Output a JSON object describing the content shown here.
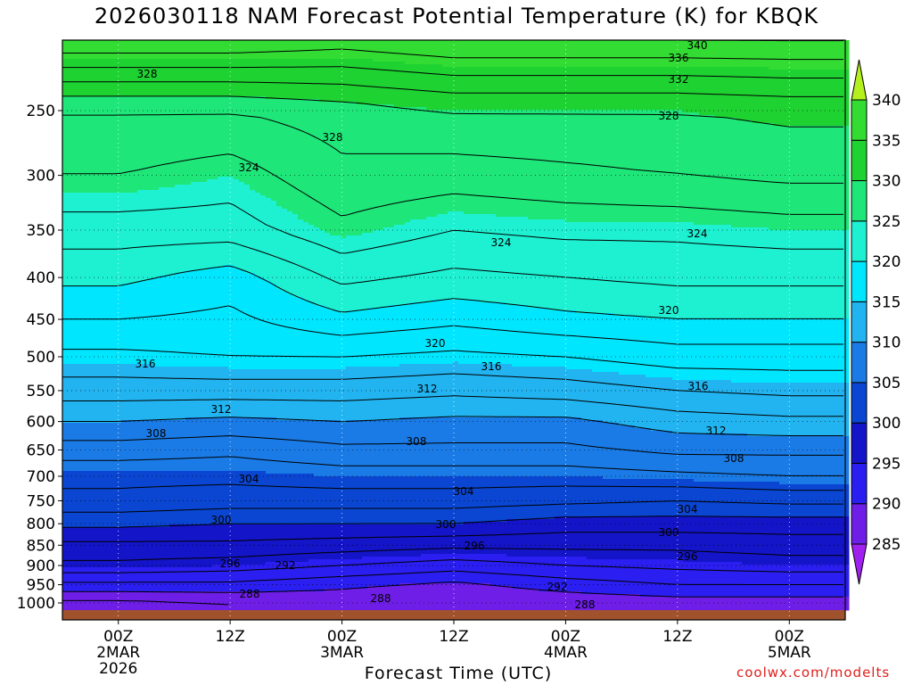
{
  "chart_data": {
    "type": "heatmap",
    "title": "2026030118 NAM Forecast Potential Temperature (K) for KBQK",
    "xlabel": "Forecast Time (UTC)",
    "ylabel": "",
    "x_ticks": [
      "00Z\n2MAR\n2026",
      "12Z",
      "00Z\n3MAR",
      "12Z",
      "00Z\n4MAR",
      "12Z",
      "00Z\n5MAR"
    ],
    "x_tick_hours": [
      6,
      18,
      30,
      42,
      54,
      66,
      78
    ],
    "x_range_hours": [
      0,
      84
    ],
    "y_ticks": [
      250,
      300,
      350,
      400,
      450,
      500,
      550,
      600,
      650,
      700,
      750,
      800,
      850,
      900,
      950,
      1000
    ],
    "y_range": [
      1025,
      200
    ],
    "y_scale": "log-pressure",
    "grid": true,
    "colorbar": {
      "levels": [
        285,
        290,
        295,
        300,
        305,
        310,
        315,
        320,
        325,
        330,
        335,
        340
      ],
      "colors": [
        "#a020f0",
        "#6e1ee6",
        "#2a1ef0",
        "#1414c8",
        "#0a46d2",
        "#1a7be6",
        "#22b4f0",
        "#00e6ff",
        "#1ef0d2",
        "#1ee678",
        "#1ed232",
        "#32dc32",
        "#b4f01e"
      ]
    },
    "contour_labels": [
      "340",
      "336",
      "332",
      "328",
      "328",
      "328",
      "324",
      "324",
      "324",
      "320",
      "320",
      "316",
      "316",
      "316",
      "312",
      "312",
      "312",
      "308",
      "308",
      "308",
      "304",
      "304",
      "304",
      "300",
      "300",
      "300",
      "296",
      "296",
      "296",
      "292",
      "292",
      "288",
      "288",
      "288"
    ],
    "profiles": [
      {
        "hour": 6,
        "theta": [
          [
            1000,
            287.5
          ],
          [
            950,
            291.5
          ],
          [
            900,
            295.5
          ],
          [
            850,
            297.5
          ],
          [
            800,
            300.5
          ],
          [
            750,
            303.5
          ],
          [
            700,
            304.5
          ],
          [
            650,
            307
          ],
          [
            600,
            310
          ],
          [
            550,
            313
          ],
          [
            500,
            315.5
          ],
          [
            450,
            318
          ],
          [
            400,
            320.5
          ],
          [
            350,
            323
          ],
          [
            300,
            326
          ],
          [
            250,
            328
          ],
          [
            200,
            339
          ]
        ]
      },
      {
        "hour": 18,
        "theta": [
          [
            1000,
            288
          ],
          [
            950,
            291.5
          ],
          [
            900,
            295
          ],
          [
            850,
            297.5
          ],
          [
            800,
            300
          ],
          [
            750,
            303
          ],
          [
            700,
            304.5
          ],
          [
            650,
            306.5
          ],
          [
            600,
            309.5
          ],
          [
            550,
            313
          ],
          [
            500,
            316
          ],
          [
            450,
            317.5
          ],
          [
            400,
            319
          ],
          [
            350,
            323
          ],
          [
            300,
            325
          ],
          [
            250,
            328
          ],
          [
            200,
            339
          ]
        ]
      },
      {
        "hour": 30,
        "theta": [
          [
            1000,
            288.5
          ],
          [
            950,
            290.5
          ],
          [
            900,
            294
          ],
          [
            850,
            297
          ],
          [
            800,
            300
          ],
          [
            750,
            303
          ],
          [
            700,
            305
          ],
          [
            650,
            307.5
          ],
          [
            600,
            310
          ],
          [
            550,
            313
          ],
          [
            500,
            316
          ],
          [
            450,
            319.5
          ],
          [
            400,
            322.5
          ],
          [
            350,
            325.5
          ],
          [
            300,
            327.5
          ],
          [
            250,
            329
          ],
          [
            200,
            338
          ]
        ]
      },
      {
        "hour": 42,
        "theta": [
          [
            1000,
            288
          ],
          [
            950,
            289.5
          ],
          [
            900,
            293
          ],
          [
            850,
            296.5
          ],
          [
            800,
            300
          ],
          [
            750,
            303
          ],
          [
            700,
            305
          ],
          [
            650,
            307.5
          ],
          [
            600,
            309.5
          ],
          [
            550,
            312.5
          ],
          [
            500,
            315.5
          ],
          [
            450,
            318.5
          ],
          [
            400,
            321.5
          ],
          [
            350,
            324
          ],
          [
            300,
            327
          ],
          [
            250,
            330
          ],
          [
            200,
            339
          ]
        ]
      },
      {
        "hour": 54,
        "theta": [
          [
            1000,
            288.5
          ],
          [
            950,
            291
          ],
          [
            900,
            294
          ],
          [
            850,
            296.5
          ],
          [
            800,
            299
          ],
          [
            750,
            302.5
          ],
          [
            700,
            305
          ],
          [
            650,
            307.5
          ],
          [
            600,
            309.5
          ],
          [
            550,
            313
          ],
          [
            500,
            316
          ],
          [
            450,
            319.5
          ],
          [
            400,
            322
          ],
          [
            350,
            324.5
          ],
          [
            300,
            327.5
          ],
          [
            250,
            330
          ],
          [
            200,
            339
          ]
        ]
      },
      {
        "hour": 66,
        "theta": [
          [
            1000,
            289
          ],
          [
            950,
            292
          ],
          [
            900,
            294.5
          ],
          [
            850,
            296.5
          ],
          [
            800,
            299
          ],
          [
            750,
            302
          ],
          [
            700,
            305.5
          ],
          [
            650,
            308.5
          ],
          [
            600,
            311
          ],
          [
            550,
            314
          ],
          [
            500,
            317
          ],
          [
            450,
            320
          ],
          [
            400,
            322.5
          ],
          [
            350,
            324.5
          ],
          [
            300,
            328
          ],
          [
            250,
            330
          ],
          [
            200,
            339
          ]
        ]
      },
      {
        "hour": 78,
        "theta": [
          [
            1000,
            289
          ],
          [
            950,
            292
          ],
          [
            900,
            295
          ],
          [
            850,
            297
          ],
          [
            800,
            299
          ],
          [
            750,
            302.5
          ],
          [
            700,
            306
          ],
          [
            650,
            308.5
          ],
          [
            600,
            311.5
          ],
          [
            550,
            314.5
          ],
          [
            500,
            317
          ],
          [
            450,
            320
          ],
          [
            400,
            322.5
          ],
          [
            350,
            325
          ],
          [
            300,
            328.5
          ],
          [
            250,
            330.5
          ],
          [
            200,
            339
          ]
        ]
      }
    ]
  },
  "credit": "coolwx.com/modelts",
  "ground_color": "#a0522d"
}
